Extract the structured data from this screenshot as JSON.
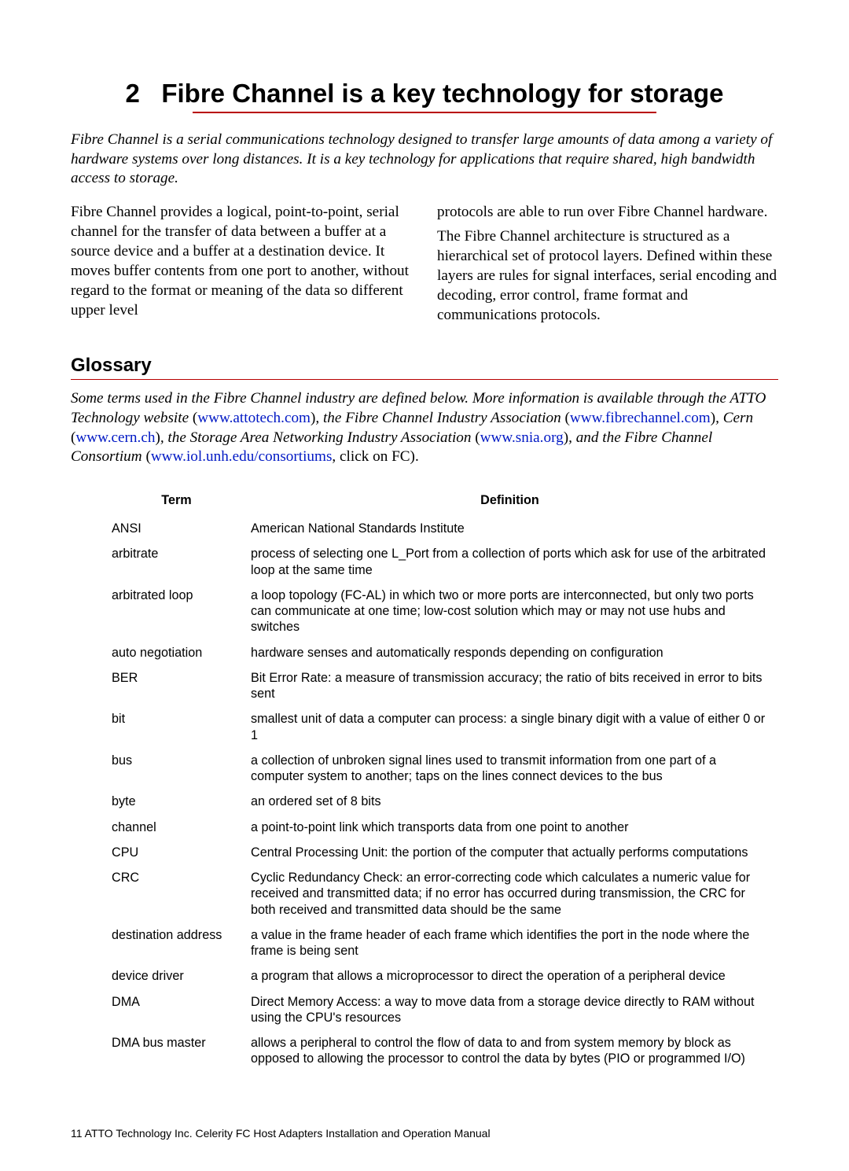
{
  "chapter": {
    "number": "2",
    "title": "Fibre Channel is a key technology for storage",
    "rule_color": "#b80000"
  },
  "intro": "Fibre Channel is a serial communications technology designed to transfer large amounts of data among a variety of hardware systems over long distances. It is a key technology for applications that require shared, high bandwidth access to storage.",
  "body": {
    "left": "Fibre Channel provides a logical, point-to-point, serial channel for the transfer of data between a buffer at a source device and a buffer at a destination device. It moves buffer contents from one port to another, without regard to the format or meaning of the data so different upper level",
    "right1": "protocols are able to run over Fibre Channel hardware.",
    "right2": "The Fibre Channel architecture is structured as a hierarchical set of protocol layers. Defined within these layers are rules for signal interfaces, serial encoding and decoding, error control, frame format and communications protocols."
  },
  "glossary": {
    "heading": "Glossary",
    "note": {
      "t1": "Some terms used in the Fibre Channel industry are defined below. More information is available through the ATTO Technology website ",
      "l1": "(www.attotech.com)",
      "t2": ", the Fibre Channel Industry Association ",
      "l2": "(www.fibrechannel.com)",
      "t3": ", Cern ",
      "l3": "(www.cern.ch)",
      "t4": ", the Storage Area Networking Industry Association ",
      "l4": "(www.snia.org)",
      "t5": ", and the Fibre Channel Consortium ",
      "l5": "(www.iol.unh.edu/consortiums",
      "t6": ", click on FC)."
    },
    "columns": {
      "term": "Term",
      "definition": "Definition"
    },
    "rows": [
      {
        "term": "ANSI",
        "def": "American National Standards Institute"
      },
      {
        "term": "arbitrate",
        "def": "process of selecting one L_Port from a collection of ports which ask for use of the arbitrated loop at the same time"
      },
      {
        "term": "arbitrated loop",
        "def": "a loop topology (FC-AL) in which two or more ports are interconnected, but only two ports can communicate at one time; low-cost solution which may or may not use hubs and switches"
      },
      {
        "term": "auto negotiation",
        "def": "hardware senses and automatically responds depending on configuration"
      },
      {
        "term": "BER",
        "def": "Bit Error Rate: a measure of transmission accuracy; the ratio of bits received in error to bits sent"
      },
      {
        "term": "bit",
        "def": "smallest unit of data a computer can process: a single binary digit with a value of either 0 or 1"
      },
      {
        "term": "bus",
        "def": "a collection of unbroken signal lines used to transmit information from one part of a computer system to another; taps on the lines connect devices to the bus"
      },
      {
        "term": "byte",
        "def": "an ordered set of 8 bits"
      },
      {
        "term": "channel",
        "def": "a point-to-point link which transports data from one point to another"
      },
      {
        "term": "CPU",
        "def": "Central Processing Unit: the portion of the computer that actually performs computations"
      },
      {
        "term": "CRC",
        "def": "Cyclic Redundancy Check: an error-correcting code which calculates a numeric value for received and transmitted data; if no error has occurred during transmission, the CRC for both received and transmitted data should be the same"
      },
      {
        "term": "destination address",
        "def": "a value in the frame header of each frame which identifies the port in the node where the frame is being sent"
      },
      {
        "term": "device driver",
        "def": "a program that allows a microprocessor to direct the operation of a peripheral device"
      },
      {
        "term": "DMA",
        "def": "Direct Memory Access: a way to move data from a storage device directly to RAM without using the CPU's resources"
      },
      {
        "term": "DMA bus master",
        "def": "allows a peripheral to control the flow of data to and from system memory by block as opposed to allowing the processor to control the data by bytes (PIO or programmed I/O)"
      }
    ]
  },
  "footer": "11 ATTO Technology Inc. Celerity FC Host Adapters Installation and Operation Manual",
  "colors": {
    "link": "#0018c4",
    "rule": "#b80000",
    "text": "#000000",
    "bg": "#ffffff"
  },
  "fonts": {
    "heading_family": "Arial",
    "body_family": "Times New Roman",
    "title_size_pt": 25,
    "section_size_pt": 18,
    "body_size_pt": 14.5,
    "table_size_pt": 12.2,
    "footer_size_pt": 10.5
  }
}
